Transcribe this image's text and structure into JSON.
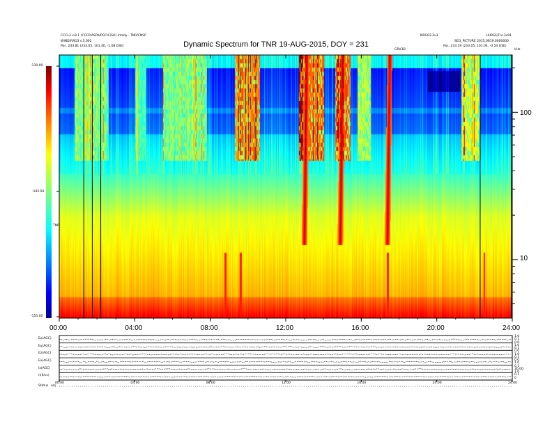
{
  "header": {
    "left_line1": "CCCL3 v.8.1 (CCCP/ASPA/PGCIC/SH) Intelly - TNR/CNSP",
    "left_line2": "WIND/RAD3 v.5.002",
    "left_line3": "Pos.  243.81 (233.05, 101.40, -1.08 GSE)",
    "right_line1a": "NRG03.2v3",
    "right_line1b": "LAIRSS/Tnr.3v01",
    "right_line2": "SEQ_PICTURE 2015.0819.0000000",
    "right_line3": "Pos.  233.29 (233.05, 101.04, -0.54 GSE)",
    "small_label": "GRV3D",
    "small_label2": "kHz"
  },
  "chart_data": {
    "type": "heatmap",
    "title": "Dynamic Spectrum for TNR 19-AUG-2015, DOY = 231",
    "colorbar": {
      "ticks": [
        "-130.00",
        "-142.50",
        "-155.00"
      ],
      "range": [
        -155.0,
        -130.0
      ],
      "label": "TNR",
      "colormap": "jet"
    },
    "x_ticks": [
      "00:00",
      "04:00",
      "08:00",
      "12:00",
      "16:00",
      "20:00",
      "24:00"
    ],
    "x_range_hours": [
      0,
      24
    ],
    "y_right_ticks": [
      "100",
      "10"
    ],
    "y_range_khz": [
      4,
      245
    ],
    "y_scale": "log",
    "vertical_lines_hours": [
      1.3,
      1.75,
      2.2,
      22.3,
      23.95
    ],
    "bursts": [
      {
        "t": 13.1,
        "type": "III"
      },
      {
        "t": 15.0,
        "type": "III"
      },
      {
        "t": 17.5,
        "type": "III"
      }
    ]
  },
  "bottom_panel": {
    "row_labels": [
      "Ex(AGC)",
      "Ey(AGC)",
      "Ez(AGC)",
      "Ex(AGC)",
      "Ix(AGC)",
      "n(0/cc)"
    ],
    "right_ticks": [
      "1.0",
      "0.1",
      "0.0",
      "1.0",
      "0.1",
      "0.0",
      "1.0",
      "0.1",
      "0.0",
      "1.0",
      "0.1",
      "30.00",
      "1.0",
      "0.1",
      "0"
    ],
    "x_ticks": [
      "00:00",
      "04:00",
      "08:00",
      "12:00",
      "16:00",
      "20:00",
      "24:00"
    ],
    "status_label": "Status",
    "status_value": "adj"
  },
  "colors": {
    "background": "#ffffff",
    "vertical_line": "#000000"
  }
}
